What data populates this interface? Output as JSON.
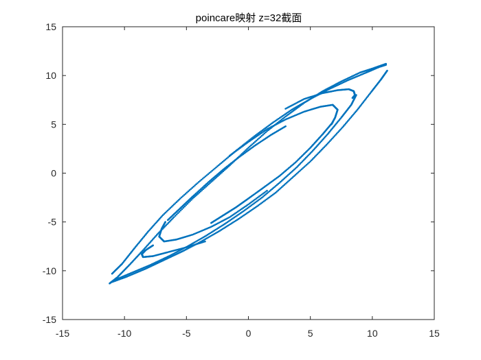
{
  "chart_data": {
    "type": "scatter",
    "title": "poincare映射 z=32截面",
    "xlabel": "",
    "ylabel": "",
    "xlim": [
      -15,
      15
    ],
    "ylim": [
      -15,
      15
    ],
    "xticks": [
      "-15",
      "-10",
      "-5",
      "0",
      "5",
      "10",
      "15"
    ],
    "yticks": [
      "-15",
      "-10",
      "-5",
      "0",
      "5",
      "10",
      "15"
    ],
    "grid": false,
    "marker_color": "#0072BD",
    "marker": "point",
    "series": [
      {
        "curves": [
          {
            "id": "outer-upper-left-band",
            "points": [
              [
                -11.2,
                -11.3
              ],
              [
                -10.6,
                -10.7
              ],
              [
                -9.6,
                -9.4
              ],
              [
                -8.5,
                -7.9
              ],
              [
                -7.3,
                -6.2
              ],
              [
                -6.0,
                -4.5
              ],
              [
                -4.5,
                -2.6
              ],
              [
                -3.0,
                -0.9
              ],
              [
                -1.5,
                0.8
              ],
              [
                0.0,
                2.6
              ],
              [
                1.5,
                4.3
              ],
              [
                3.0,
                5.8
              ],
              [
                4.5,
                7.2
              ],
              [
                6.0,
                8.4
              ],
              [
                7.5,
                9.4
              ],
              [
                9.0,
                10.3
              ],
              [
                10.2,
                10.8
              ],
              [
                11.1,
                11.2
              ]
            ]
          },
          {
            "id": "inner-upper-left-band",
            "points": [
              [
                -11.0,
                -10.3
              ],
              [
                -10.2,
                -9.3
              ],
              [
                -9.2,
                -7.7
              ],
              [
                -8.1,
                -6.0
              ],
              [
                -6.9,
                -4.3
              ],
              [
                -5.5,
                -2.6
              ],
              [
                -4.0,
                -0.9
              ],
              [
                -2.5,
                0.7
              ],
              [
                -1.0,
                2.3
              ],
              [
                0.5,
                3.8
              ],
              [
                2.0,
                5.2
              ],
              [
                3.5,
                6.5
              ],
              [
                5.0,
                7.6
              ],
              [
                6.5,
                8.6
              ],
              [
                8.0,
                9.5
              ],
              [
                9.5,
                10.3
              ],
              [
                10.6,
                10.9
              ],
              [
                11.1,
                11.1
              ]
            ]
          },
          {
            "id": "outer-lower-right-band",
            "points": [
              [
                -11.1,
                -11.2
              ],
              [
                -9.8,
                -10.6
              ],
              [
                -8.3,
                -9.8
              ],
              [
                -6.8,
                -8.9
              ],
              [
                -5.3,
                -8.0
              ],
              [
                -3.8,
                -7.0
              ],
              [
                -2.3,
                -5.9
              ],
              [
                -0.8,
                -4.7
              ],
              [
                0.7,
                -3.4
              ],
              [
                2.2,
                -2.0
              ],
              [
                3.6,
                -0.4
              ],
              [
                5.0,
                1.2
              ],
              [
                6.3,
                2.9
              ],
              [
                7.6,
                4.7
              ],
              [
                8.8,
                6.5
              ],
              [
                9.9,
                8.3
              ],
              [
                10.7,
                9.6
              ],
              [
                11.2,
                10.5
              ]
            ]
          },
          {
            "id": "inner-lower-right-band",
            "points": [
              [
                -10.9,
                -11.0
              ],
              [
                -9.4,
                -10.2
              ],
              [
                -7.9,
                -9.4
              ],
              [
                -6.4,
                -8.5
              ],
              [
                -4.9,
                -7.5
              ],
              [
                -3.4,
                -6.4
              ],
              [
                -1.9,
                -5.2
              ],
              [
                -0.4,
                -3.9
              ],
              [
                1.1,
                -2.5
              ],
              [
                2.5,
                -1.0
              ],
              [
                3.9,
                0.6
              ],
              [
                5.2,
                2.3
              ],
              [
                6.4,
                4.0
              ],
              [
                7.5,
                5.7
              ],
              [
                8.3,
                7.0
              ],
              [
                8.7,
                8.0
              ]
            ]
          },
          {
            "id": "upper-right-hook",
            "points": [
              [
                3.0,
                6.6
              ],
              [
                4.5,
                7.6
              ],
              [
                6.0,
                8.2
              ],
              [
                7.2,
                8.5
              ],
              [
                8.1,
                8.6
              ],
              [
                8.5,
                8.4
              ],
              [
                8.6,
                8.0
              ],
              [
                8.4,
                7.7
              ]
            ]
          },
          {
            "id": "upper-inner-spiral",
            "points": [
              [
                -1.5,
                1.8
              ],
              [
                0.0,
                3.2
              ],
              [
                1.5,
                4.5
              ],
              [
                3.0,
                5.5
              ],
              [
                4.5,
                6.3
              ],
              [
                5.8,
                6.8
              ],
              [
                6.8,
                7.0
              ],
              [
                7.2,
                6.5
              ],
              [
                7.0,
                5.7
              ],
              [
                6.7,
                5.0
              ]
            ]
          },
          {
            "id": "lower-left-hook",
            "points": [
              [
                -3.5,
                -7.0
              ],
              [
                -5.0,
                -7.6
              ],
              [
                -6.5,
                -8.1
              ],
              [
                -7.7,
                -8.5
              ],
              [
                -8.5,
                -8.6
              ],
              [
                -8.6,
                -8.3
              ],
              [
                -8.3,
                -7.9
              ],
              [
                -7.7,
                -7.4
              ]
            ]
          },
          {
            "id": "lower-inner-spiral",
            "points": [
              [
                1.5,
                -1.8
              ],
              [
                0.0,
                -3.2
              ],
              [
                -1.5,
                -4.5
              ],
              [
                -3.0,
                -5.5
              ],
              [
                -4.5,
                -6.3
              ],
              [
                -5.8,
                -6.8
              ],
              [
                -6.8,
                -7.0
              ],
              [
                -7.2,
                -6.5
              ],
              [
                -7.0,
                -5.7
              ],
              [
                -6.7,
                -5.0
              ]
            ]
          },
          {
            "id": "inner-upper-dotted-arm",
            "points": [
              [
                -6.5,
                -4.8
              ],
              [
                -5.5,
                -3.6
              ],
              [
                -4.5,
                -2.4
              ],
              [
                -3.2,
                -0.9
              ],
              [
                -2.0,
                0.4
              ],
              [
                -0.8,
                1.6
              ],
              [
                0.5,
                2.8
              ],
              [
                1.8,
                3.9
              ],
              [
                3.0,
                4.8
              ]
            ]
          },
          {
            "id": "inner-lower-dotted-arm",
            "points": [
              [
                -3.0,
                -5.1
              ],
              [
                -2.0,
                -4.3
              ],
              [
                -1.0,
                -3.5
              ],
              [
                0.0,
                -2.6
              ],
              [
                1.2,
                -1.5
              ],
              [
                2.5,
                -0.3
              ],
              [
                3.8,
                1.1
              ],
              [
                5.0,
                2.6
              ],
              [
                6.0,
                4.0
              ],
              [
                6.8,
                5.2
              ]
            ]
          }
        ]
      }
    ]
  }
}
